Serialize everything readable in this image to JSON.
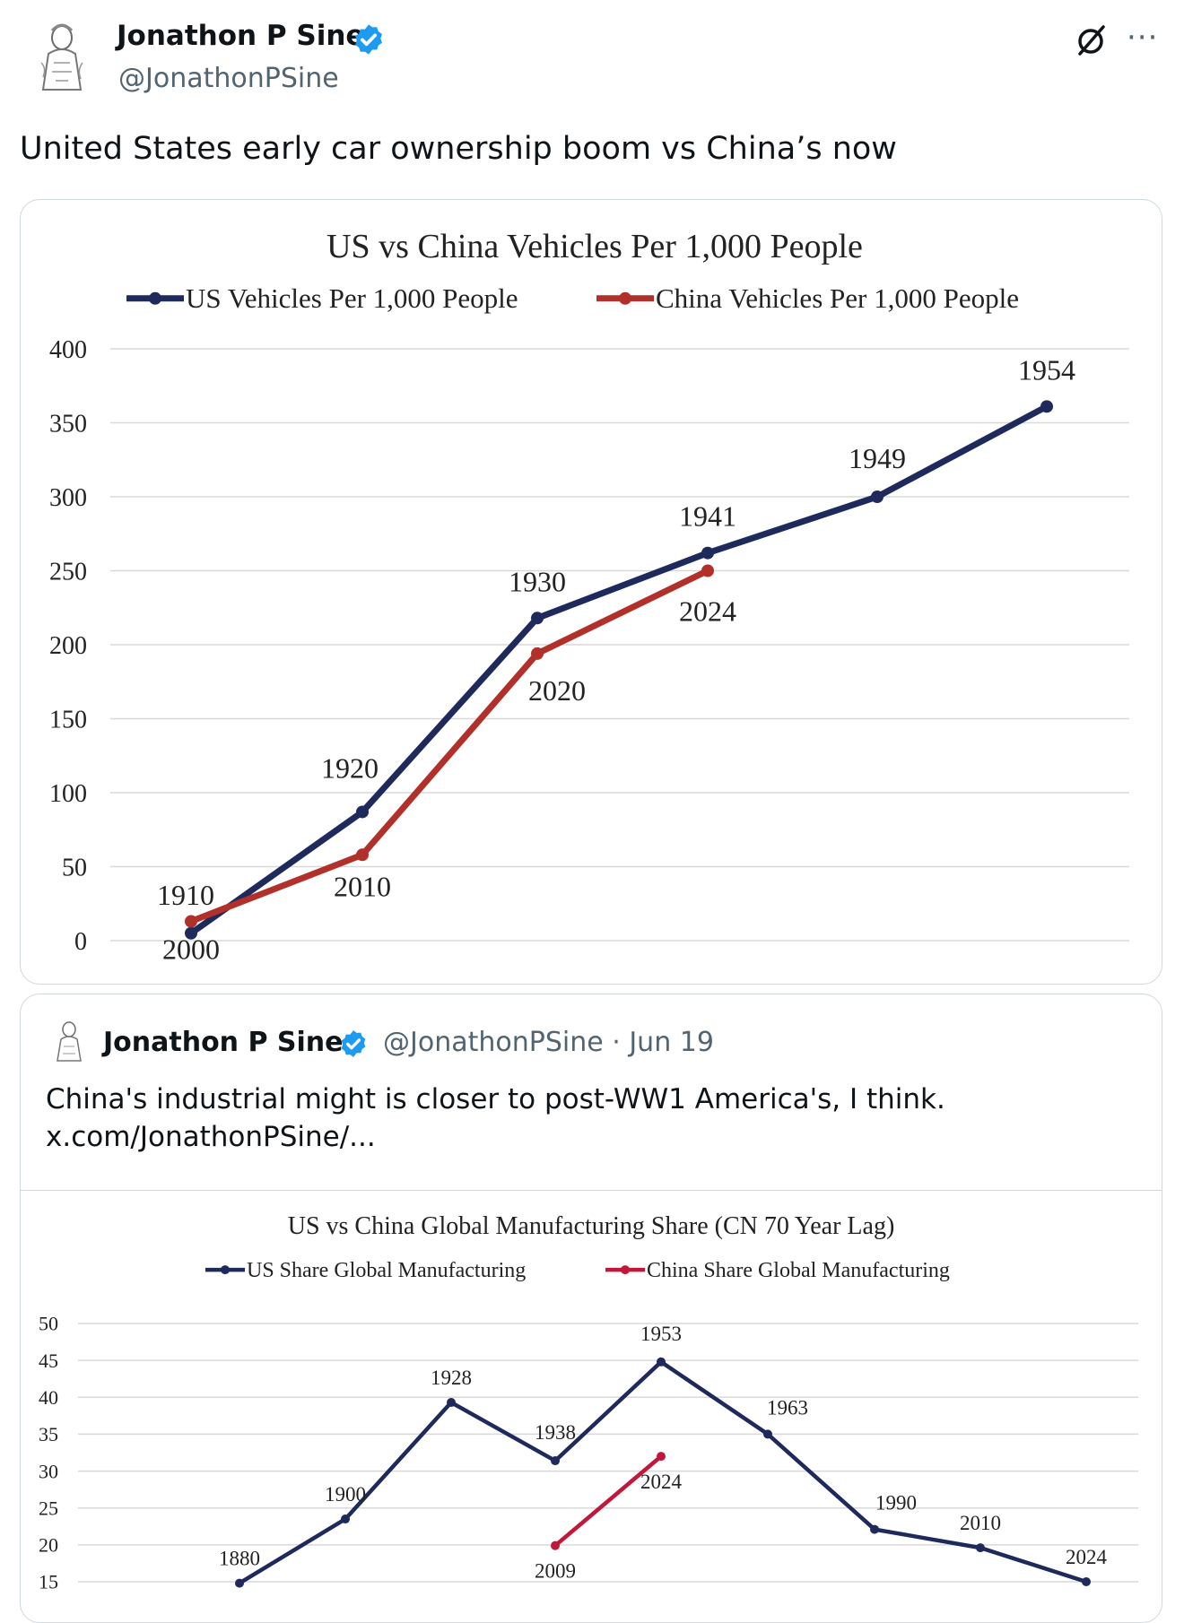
{
  "post": {
    "author_name": "Jonathon P Sine",
    "author_handle": "@JonathonPSine",
    "more_label": "···",
    "text": "United States early car ownership boom vs China’s now"
  },
  "quoted_post": {
    "author_name": "Jonathon P Sine",
    "author_handle": "@JonathonPSine",
    "separator": "·",
    "date": "Jun 19",
    "text_line1": "China's industrial might is closer to post-WW1 America's, I think.",
    "text_line2": "x.com/JonathonPSine/..."
  },
  "colors": {
    "us_series": "#1f2a5c",
    "china_series_chart1": "#b2302a",
    "china_series_chart2": "#c0173a",
    "verified": "#1d9bf0",
    "grid": "#d9d9d9"
  },
  "chart_data": [
    {
      "type": "line",
      "title": "US vs China Vehicles Per 1,000 People",
      "ylim": [
        0,
        400
      ],
      "yticks": [
        0,
        50,
        100,
        150,
        200,
        250,
        300,
        350,
        400
      ],
      "series": [
        {
          "name": "US Vehicles Per 1,000 People",
          "x": [
            0,
            1,
            2,
            3,
            4,
            5
          ],
          "values": [
            5,
            87,
            218,
            262,
            300,
            361
          ],
          "labels": [
            "1910",
            "1920",
            "1930",
            "1941",
            "1949",
            "1954"
          ]
        },
        {
          "name": "China Vehicles Per 1,000 People",
          "x": [
            0,
            1,
            2,
            3
          ],
          "values": [
            13,
            58,
            194,
            250
          ],
          "labels": [
            "2000",
            "2010",
            "2020",
            "2024"
          ]
        }
      ]
    },
    {
      "type": "line",
      "title": "US vs China Global Manufacturing Share (CN 70 Year Lag)",
      "ylim": [
        15,
        50
      ],
      "yticks": [
        15,
        20,
        25,
        30,
        35,
        40,
        45,
        50
      ],
      "series": [
        {
          "name": "US Share Global Manufacturing",
          "x": [
            0,
            1,
            2,
            3,
            4,
            5,
            6,
            7,
            8
          ],
          "values": [
            14.8,
            23.5,
            39.3,
            31.4,
            44.8,
            35,
            22.1,
            19.6,
            15
          ],
          "labels": [
            "1880",
            "1900",
            "1928",
            "1938",
            "1953",
            "1963",
            "1990",
            "2010",
            "2024"
          ]
        },
        {
          "name": "China Share Global Manufacturing",
          "x": [
            3,
            4
          ],
          "values": [
            19.9,
            32
          ],
          "labels": [
            "2009",
            "2024"
          ]
        }
      ]
    }
  ]
}
